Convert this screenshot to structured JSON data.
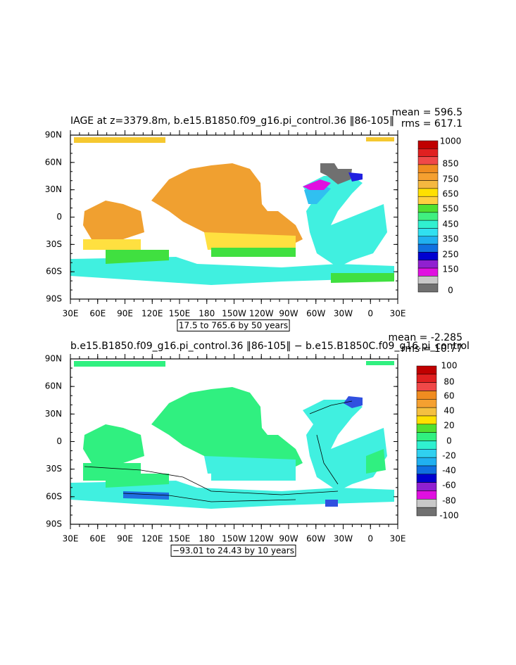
{
  "panels": [
    {
      "title": "IAGE at z=3379.8m, b.e15.B1850.f09_g16.pi_control.36 ‖86-105‖",
      "mean": "mean = 596.5",
      "rms": "rms = 617.1",
      "lat_labels": [
        "90N",
        "60N",
        "30N",
        "0",
        "30S",
        "60S",
        "90S"
      ],
      "lon_labels": [
        "30E",
        "60E",
        "90E",
        "120E",
        "150E",
        "180",
        "150W",
        "120W",
        "90W",
        "60W",
        "30W",
        "0",
        "30E"
      ],
      "colorbar_labels": [
        "1000",
        "850",
        "750",
        "650",
        "550",
        "450",
        "350",
        "250",
        "150",
        "0"
      ],
      "info": "17.5 to 765.6 by 50 years"
    },
    {
      "title": "b.e15.B1850.f09_g16.pi_control.36 ‖86-105‖ − b.e15.B1850C.f09_g16.pi_control",
      "mean": "mean = -2.285",
      "rms": "rms = 10.77",
      "lat_labels": [
        "90N",
        "60N",
        "30N",
        "0",
        "30S",
        "60S",
        "90S"
      ],
      "lon_labels": [
        "30E",
        "60E",
        "90E",
        "120E",
        "150E",
        "180",
        "150W",
        "120W",
        "90W",
        "60W",
        "30W",
        "0",
        "30E"
      ],
      "colorbar_labels": [
        "100",
        "80",
        "60",
        "40",
        "20",
        "0",
        "-20",
        "-40",
        "-60",
        "-80",
        "-100"
      ],
      "info": "−93.01 to 24.43 by 10 years"
    }
  ]
}
